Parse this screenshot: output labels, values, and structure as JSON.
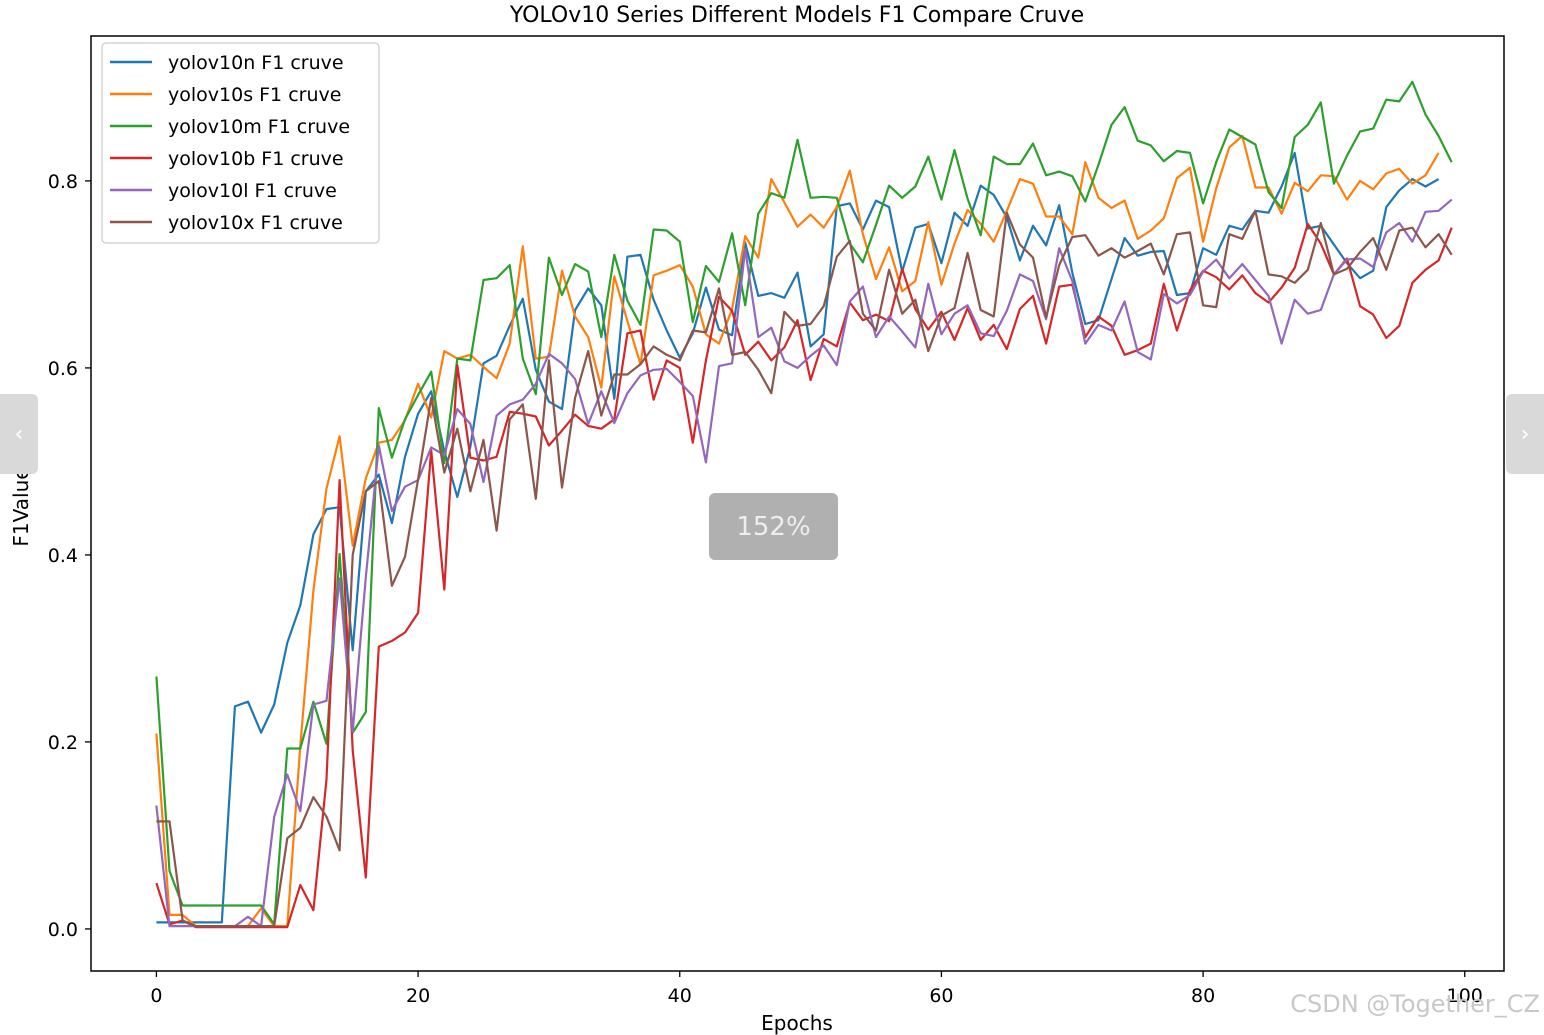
{
  "chart_data": {
    "type": "line",
    "title": "YOLOv10 Series Different Models F1 Compare Cruve",
    "xlabel": "Epochs",
    "ylabel": "F1Value",
    "xlim": [
      -5,
      103
    ],
    "ylim": [
      -0.045,
      0.955
    ],
    "xticks": [
      0,
      20,
      40,
      60,
      80,
      100
    ],
    "yticks": [
      0.0,
      0.2,
      0.4,
      0.6,
      0.8
    ],
    "legend_position": "top-left",
    "grid": false,
    "series": [
      {
        "name": "yolov10n F1 cruve",
        "color": "#1f77b4",
        "values": [
          0.007,
          0.007,
          0.007,
          0.007,
          0.007,
          0.007,
          0.238,
          0.243,
          0.21,
          0.24,
          0.306,
          0.346,
          0.422,
          0.449,
          0.451,
          0.298,
          0.468,
          0.486,
          0.434,
          0.505,
          0.551,
          0.575,
          0.511,
          0.462,
          0.516,
          0.605,
          0.613,
          0.645,
          0.674,
          0.598,
          0.564,
          0.556,
          0.662,
          0.685,
          0.667,
          0.567,
          0.719,
          0.721,
          0.673,
          0.64,
          0.611,
          0.637,
          0.686,
          0.641,
          0.635,
          0.734,
          0.677,
          0.68,
          0.675,
          0.702,
          0.623,
          0.636,
          0.773,
          0.776,
          0.748,
          0.779,
          0.772,
          0.703,
          0.75,
          0.754,
          0.712,
          0.766,
          0.752,
          0.795,
          0.785,
          0.761,
          0.715,
          0.752,
          0.731,
          0.774,
          0.702,
          0.647,
          0.651,
          0.695,
          0.739,
          0.72,
          0.724,
          0.725,
          0.678,
          0.68,
          0.728,
          0.721,
          0.752,
          0.748,
          0.768,
          0.766,
          0.794,
          0.83,
          0.749,
          0.752,
          0.732,
          0.712,
          0.696,
          0.704,
          0.772,
          0.79,
          0.802,
          0.794,
          0.802
        ]
      },
      {
        "name": "yolov10s F1 cruve",
        "color": "#ff7f0e",
        "values": [
          0.209,
          0.015,
          0.015,
          0.003,
          0.003,
          0.003,
          0.003,
          0.003,
          0.022,
          0.003,
          0.003,
          0.196,
          0.362,
          0.471,
          0.527,
          0.41,
          0.482,
          0.52,
          0.523,
          0.544,
          0.583,
          0.547,
          0.618,
          0.61,
          0.614,
          0.601,
          0.589,
          0.626,
          0.73,
          0.61,
          0.612,
          0.704,
          0.655,
          0.633,
          0.579,
          0.698,
          0.65,
          0.604,
          0.699,
          0.704,
          0.71,
          0.687,
          0.636,
          0.626,
          0.663,
          0.741,
          0.718,
          0.802,
          0.777,
          0.751,
          0.764,
          0.75,
          0.772,
          0.811,
          0.743,
          0.695,
          0.729,
          0.682,
          0.693,
          0.756,
          0.689,
          0.733,
          0.769,
          0.754,
          0.735,
          0.768,
          0.802,
          0.797,
          0.762,
          0.762,
          0.743,
          0.82,
          0.782,
          0.771,
          0.779,
          0.738,
          0.747,
          0.76,
          0.803,
          0.814,
          0.735,
          0.792,
          0.836,
          0.848,
          0.793,
          0.793,
          0.765,
          0.798,
          0.789,
          0.806,
          0.805,
          0.78,
          0.8,
          0.791,
          0.808,
          0.813,
          0.797,
          0.806,
          0.83
        ]
      },
      {
        "name": "yolov10m F1 cruve",
        "color": "#2ca02c",
        "values": [
          0.27,
          0.062,
          0.025,
          0.025,
          0.025,
          0.025,
          0.025,
          0.025,
          0.025,
          0.005,
          0.193,
          0.193,
          0.243,
          0.198,
          0.401,
          0.21,
          0.232,
          0.557,
          0.504,
          0.545,
          0.571,
          0.596,
          0.498,
          0.61,
          0.608,
          0.694,
          0.696,
          0.71,
          0.61,
          0.572,
          0.718,
          0.678,
          0.711,
          0.703,
          0.633,
          0.721,
          0.672,
          0.646,
          0.748,
          0.747,
          0.735,
          0.649,
          0.709,
          0.692,
          0.744,
          0.667,
          0.765,
          0.787,
          0.782,
          0.844,
          0.782,
          0.783,
          0.782,
          0.733,
          0.713,
          0.753,
          0.795,
          0.782,
          0.794,
          0.826,
          0.78,
          0.833,
          0.781,
          0.742,
          0.826,
          0.818,
          0.818,
          0.84,
          0.806,
          0.81,
          0.805,
          0.778,
          0.817,
          0.86,
          0.879,
          0.843,
          0.838,
          0.821,
          0.832,
          0.83,
          0.776,
          0.82,
          0.855,
          0.847,
          0.839,
          0.788,
          0.771,
          0.847,
          0.86,
          0.884,
          0.797,
          0.827,
          0.853,
          0.856,
          0.887,
          0.885,
          0.906,
          0.871,
          0.848,
          0.82
        ]
      },
      {
        "name": "yolov10b F1 cruve",
        "color": "#d62728",
        "values": [
          0.049,
          0.005,
          0.009,
          0.002,
          0.002,
          0.002,
          0.002,
          0.002,
          0.002,
          0.002,
          0.002,
          0.047,
          0.02,
          0.16,
          0.48,
          0.191,
          0.055,
          0.302,
          0.308,
          0.317,
          0.338,
          0.512,
          0.363,
          0.603,
          0.504,
          0.501,
          0.505,
          0.553,
          0.551,
          0.548,
          0.517,
          0.533,
          0.55,
          0.538,
          0.535,
          0.545,
          0.637,
          0.64,
          0.566,
          0.608,
          0.6,
          0.52,
          0.608,
          0.676,
          0.661,
          0.614,
          0.628,
          0.608,
          0.622,
          0.651,
          0.587,
          0.631,
          0.623,
          0.67,
          0.651,
          0.657,
          0.65,
          0.706,
          0.663,
          0.641,
          0.66,
          0.63,
          0.664,
          0.63,
          0.646,
          0.62,
          0.663,
          0.677,
          0.626,
          0.687,
          0.689,
          0.633,
          0.655,
          0.645,
          0.614,
          0.619,
          0.626,
          0.69,
          0.64,
          0.683,
          0.704,
          0.697,
          0.684,
          0.699,
          0.68,
          0.67,
          0.686,
          0.707,
          0.754,
          0.733,
          0.7,
          0.717,
          0.666,
          0.657,
          0.632,
          0.645,
          0.691,
          0.705,
          0.715,
          0.75
        ]
      },
      {
        "name": "yolov10l F1 cruve",
        "color": "#9467bd",
        "values": [
          0.132,
          0.003,
          0.003,
          0.003,
          0.003,
          0.003,
          0.003,
          0.013,
          0.003,
          0.12,
          0.165,
          0.126,
          0.24,
          0.244,
          0.375,
          0.211,
          0.376,
          0.517,
          0.447,
          0.473,
          0.48,
          0.515,
          0.507,
          0.556,
          0.54,
          0.478,
          0.549,
          0.561,
          0.566,
          0.583,
          0.615,
          0.605,
          0.588,
          0.54,
          0.575,
          0.541,
          0.573,
          0.592,
          0.598,
          0.599,
          0.585,
          0.57,
          0.499,
          0.602,
          0.605,
          0.727,
          0.633,
          0.643,
          0.607,
          0.6,
          0.613,
          0.624,
          0.603,
          0.671,
          0.687,
          0.633,
          0.655,
          0.639,
          0.622,
          0.69,
          0.636,
          0.658,
          0.667,
          0.637,
          0.634,
          0.661,
          0.7,
          0.693,
          0.652,
          0.728,
          0.693,
          0.626,
          0.646,
          0.64,
          0.671,
          0.617,
          0.609,
          0.679,
          0.669,
          0.678,
          0.703,
          0.716,
          0.696,
          0.711,
          0.694,
          0.677,
          0.626,
          0.673,
          0.658,
          0.662,
          0.7,
          0.716,
          0.717,
          0.708,
          0.745,
          0.755,
          0.735,
          0.767,
          0.768,
          0.78
        ]
      },
      {
        "name": "yolov10x F1 cruve",
        "color": "#8c564b",
        "values": [
          0.115,
          0.115,
          0.009,
          0.003,
          0.003,
          0.003,
          0.003,
          0.003,
          0.003,
          0.003,
          0.097,
          0.108,
          0.141,
          0.12,
          0.084,
          0.4,
          0.468,
          0.479,
          0.367,
          0.398,
          0.481,
          0.568,
          0.488,
          0.535,
          0.468,
          0.523,
          0.426,
          0.545,
          0.561,
          0.46,
          0.608,
          0.472,
          0.568,
          0.618,
          0.549,
          0.593,
          0.593,
          0.604,
          0.623,
          0.614,
          0.608,
          0.64,
          0.638,
          0.685,
          0.614,
          0.617,
          0.598,
          0.573,
          0.66,
          0.645,
          0.647,
          0.666,
          0.719,
          0.736,
          0.658,
          0.64,
          0.705,
          0.658,
          0.673,
          0.618,
          0.656,
          0.664,
          0.723,
          0.662,
          0.655,
          0.766,
          0.732,
          0.718,
          0.654,
          0.71,
          0.74,
          0.742,
          0.72,
          0.728,
          0.718,
          0.725,
          0.733,
          0.7,
          0.743,
          0.745,
          0.667,
          0.665,
          0.743,
          0.738,
          0.768,
          0.7,
          0.698,
          0.691,
          0.705,
          0.755,
          0.7,
          0.706,
          0.724,
          0.739,
          0.705,
          0.747,
          0.75,
          0.729,
          0.743,
          0.721
        ]
      }
    ]
  },
  "overlay": {
    "zoom_label": "152%",
    "watermark": "CSDN @Together_CZ",
    "prev_icon": "‹",
    "next_icon": "›"
  }
}
